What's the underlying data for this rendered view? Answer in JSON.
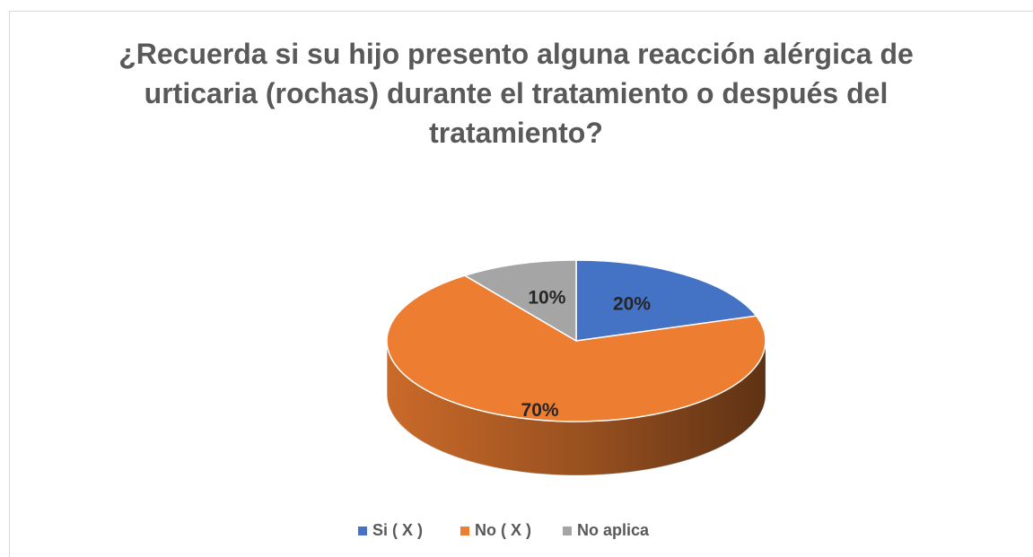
{
  "chart_data": {
    "type": "pie",
    "title": "¿Recuerda si su hijo presento alguna reacción alérgica de urticaria (rochas) durante el tratamiento o después del tratamiento?",
    "categories": [
      "Si ( X )",
      "No ( X )",
      "No aplica"
    ],
    "values": [
      20,
      70,
      10
    ],
    "value_labels": [
      "20%",
      "70%",
      "10%"
    ],
    "colors": [
      "#4472c4",
      "#ed7d31",
      "#a5a5a5"
    ],
    "legend": "bottom"
  }
}
